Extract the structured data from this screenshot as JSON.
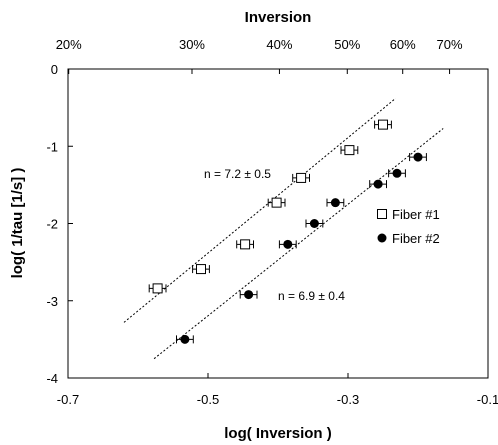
{
  "chart_data": {
    "type": "scatter",
    "xlabel": "log( Inversion )",
    "ylabel": "log( 1/tau [1/s] )",
    "top_axis_title": "Inversion",
    "xlim": [
      -0.7,
      -0.1
    ],
    "ylim": [
      -4,
      0
    ],
    "x_ticks": [
      -0.7,
      -0.5,
      -0.3,
      -0.1
    ],
    "x_tick_labels": [
      "-0.7",
      "-0.5",
      "-0.3",
      "-0.1"
    ],
    "y_ticks": [
      0,
      -1,
      -2,
      -3,
      -4
    ],
    "y_tick_labels": [
      "0",
      "-1",
      "-2",
      "-3",
      "-4"
    ],
    "top_ticks": [
      0.2,
      0.3,
      0.4,
      0.5,
      0.6,
      0.7
    ],
    "top_tick_labels": [
      "20%",
      "30%",
      "40%",
      "50%",
      "60%",
      "70%"
    ],
    "legend_position": "right",
    "series": [
      {
        "name": "Fiber #1",
        "marker": "open-square",
        "color": "#000000",
        "x": [
          -0.572,
          -0.51,
          -0.447,
          -0.402,
          -0.367,
          -0.298,
          -0.25
        ],
        "y": [
          -2.84,
          -2.59,
          -2.27,
          -1.73,
          -1.41,
          -1.05,
          -0.72
        ],
        "xerr": 0.012,
        "fit": {
          "x": [
            -0.62,
            -0.232
          ],
          "y": [
            -3.28,
            -0.38
          ]
        },
        "annotation": "n = 7.2 ± 0.5"
      },
      {
        "name": "Fiber #2",
        "marker": "filled-circle",
        "color": "#000000",
        "x": [
          -0.533,
          -0.442,
          -0.386,
          -0.348,
          -0.318,
          -0.257,
          -0.23,
          -0.2
        ],
        "y": [
          -3.5,
          -2.92,
          -2.27,
          -2.0,
          -1.73,
          -1.49,
          -1.35,
          -1.14
        ],
        "xerr": 0.012,
        "fit": {
          "x": [
            -0.577,
            -0.164
          ],
          "y": [
            -3.75,
            -0.77
          ]
        },
        "annotation": "n = 6.9 ± 0.4"
      }
    ]
  }
}
